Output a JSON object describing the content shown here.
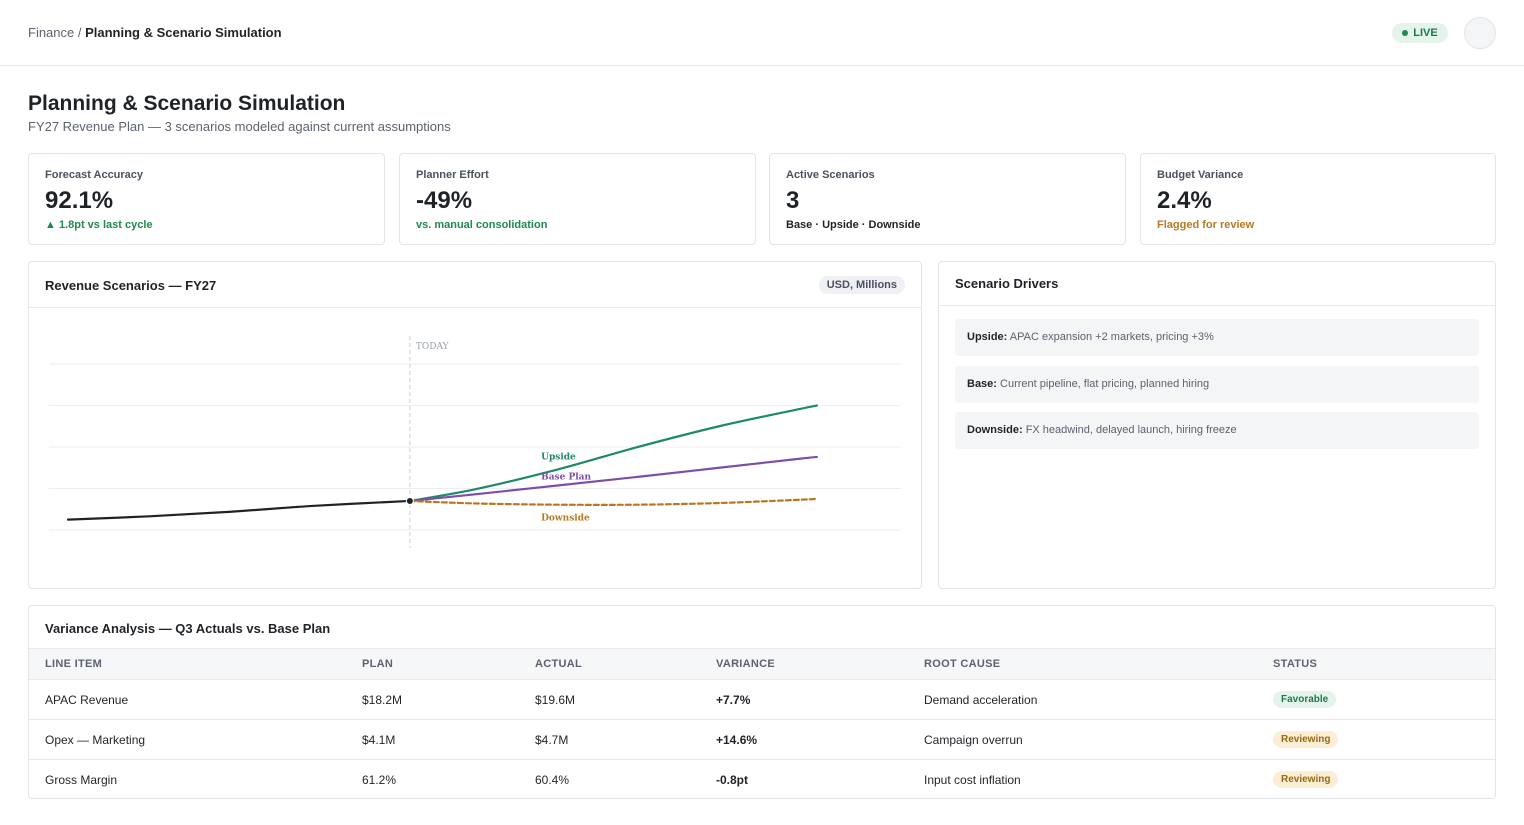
{
  "header": {
    "breadcrumb_parent": "Finance",
    "breadcrumb_sep": " / ",
    "breadcrumb_current": "Planning & Scenario Simulation",
    "live_label": "LIVE"
  },
  "page": {
    "title": "Planning & Scenario Simulation",
    "subtitle": "FY27 Revenue Plan — 3 scenarios modeled against current assumptions"
  },
  "kpis": [
    {
      "label": "Forecast Accuracy",
      "value": "92.1%",
      "note": "▲ 1.8pt vs last cycle",
      "note_color": "#1d8a4e"
    },
    {
      "label": "Planner Effort",
      "value": "-49%",
      "note": "vs. manual consolidation",
      "note_color": "#1d8a4e"
    },
    {
      "label": "Active Scenarios",
      "value": "3",
      "note": "Base · Upside · Downside",
      "note_color": "#1f2328"
    },
    {
      "label": "Budget Variance",
      "value": "2.4%",
      "note": "Flagged for review",
      "note_color": "#b7791f"
    }
  ],
  "chart_panel": {
    "title": "Revenue Scenarios — FY27",
    "unit_badge": "USD, Millions"
  },
  "chart_data": {
    "type": "line",
    "today_label": "TODAY",
    "ylim": [
      0,
      4
    ],
    "grid": true,
    "x_range": [
      0,
      10
    ],
    "today_x": 4.2,
    "series": [
      {
        "key": "actual",
        "name": "",
        "color": "#1f2328",
        "dashed": false,
        "points": [
          [
            0,
            0.25
          ],
          [
            1,
            0.33
          ],
          [
            2,
            0.44
          ],
          [
            3,
            0.58
          ],
          [
            4.2,
            0.7
          ]
        ]
      },
      {
        "key": "upside",
        "name": "Upside",
        "color": "#1d8a6a",
        "dashed": false,
        "points": [
          [
            4.2,
            0.7
          ],
          [
            5,
            0.98
          ],
          [
            6,
            1.45
          ],
          [
            7,
            2.0
          ],
          [
            8,
            2.5
          ],
          [
            9,
            2.92
          ],
          [
            9.2,
            3.0
          ]
        ]
      },
      {
        "key": "base",
        "name": "Base Plan",
        "color": "#7b4ea8",
        "dashed": false,
        "points": [
          [
            4.2,
            0.7
          ],
          [
            5,
            0.86
          ],
          [
            6,
            1.07
          ],
          [
            7,
            1.28
          ],
          [
            8,
            1.5
          ],
          [
            9,
            1.72
          ],
          [
            9.2,
            1.76
          ]
        ]
      },
      {
        "key": "downside",
        "name": "Downside",
        "color": "#b7791f",
        "dashed": true,
        "points": [
          [
            4.2,
            0.7
          ],
          [
            5,
            0.64
          ],
          [
            6,
            0.61
          ],
          [
            7,
            0.61
          ],
          [
            8,
            0.65
          ],
          [
            9,
            0.73
          ],
          [
            9.2,
            0.75
          ]
        ]
      }
    ]
  },
  "drivers_panel": {
    "title": "Scenario Drivers",
    "items": [
      {
        "label": "Upside:",
        "text": "APAC expansion +2 markets, pricing +3%"
      },
      {
        "label": "Base:",
        "text": "Current pipeline, flat pricing, planned hiring"
      },
      {
        "label": "Downside:",
        "text": "FX headwind, delayed launch, hiring freeze"
      }
    ]
  },
  "variance_panel": {
    "title": "Variance Analysis — Q3 Actuals vs. Base Plan",
    "columns": [
      "LINE ITEM",
      "PLAN",
      "ACTUAL",
      "VARIANCE",
      "ROOT CAUSE",
      "STATUS"
    ],
    "rows": [
      {
        "item": "APAC Revenue",
        "plan": "$18.2M",
        "actual": "$19.6M",
        "variance": "+7.7%",
        "cause": "Demand acceleration",
        "status": "Favorable"
      },
      {
        "item": "Opex — Marketing",
        "plan": "$4.1M",
        "actual": "$4.7M",
        "variance": "+14.6%",
        "cause": "Campaign overrun",
        "status": "Reviewing"
      },
      {
        "item": "Gross Margin",
        "plan": "61.2%",
        "actual": "60.4%",
        "variance": "-0.8pt",
        "cause": "Input cost inflation",
        "status": "Reviewing"
      }
    ]
  }
}
